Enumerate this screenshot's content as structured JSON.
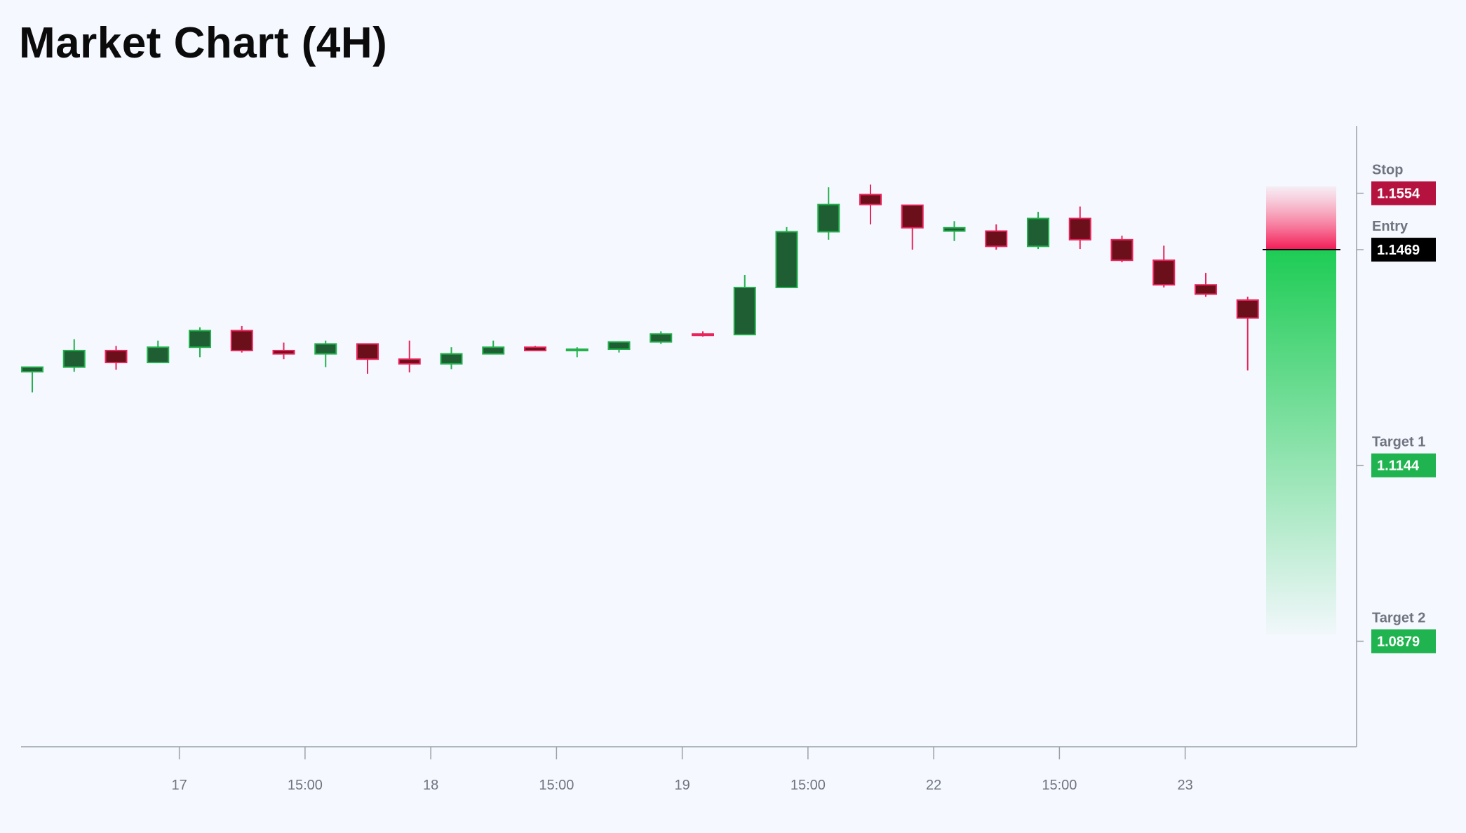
{
  "title": "Market Chart (4H)",
  "colors": {
    "background": "#f5f8fe",
    "bull_body": "#1f5e32",
    "bull_border": "#22b14c",
    "bear_body": "#6b0f1a",
    "bear_border": "#e8245a",
    "axis": "#9aa0aa",
    "stop": "#b5123f",
    "entry": "#000000",
    "target": "#1fb44f"
  },
  "chart_data": {
    "type": "candlestick",
    "x_tick_labels": [
      "17",
      "15:00",
      "18",
      "15:00",
      "19",
      "15:00",
      "22",
      "15:00",
      "23"
    ],
    "tick_after_candle": [
      4,
      7,
      10,
      13,
      16,
      19,
      22,
      25,
      28
    ],
    "ylim": [
      1.072,
      1.1655
    ],
    "candles": [
      {
        "o": 1.1285,
        "h": 1.1292,
        "l": 1.1254,
        "c": 1.1292
      },
      {
        "o": 1.1292,
        "h": 1.1334,
        "l": 1.1285,
        "c": 1.1317
      },
      {
        "o": 1.1317,
        "h": 1.1324,
        "l": 1.1288,
        "c": 1.1299
      },
      {
        "o": 1.1299,
        "h": 1.1332,
        "l": 1.1299,
        "c": 1.1322
      },
      {
        "o": 1.1322,
        "h": 1.1352,
        "l": 1.1307,
        "c": 1.1347
      },
      {
        "o": 1.1347,
        "h": 1.1354,
        "l": 1.1314,
        "c": 1.1317
      },
      {
        "o": 1.1317,
        "h": 1.1329,
        "l": 1.1304,
        "c": 1.1312
      },
      {
        "o": 1.1312,
        "h": 1.1332,
        "l": 1.1292,
        "c": 1.1327
      },
      {
        "o": 1.1327,
        "h": 1.1327,
        "l": 1.1282,
        "c": 1.1304
      },
      {
        "o": 1.1304,
        "h": 1.1332,
        "l": 1.1284,
        "c": 1.1297
      },
      {
        "o": 1.1297,
        "h": 1.1322,
        "l": 1.1289,
        "c": 1.1312
      },
      {
        "o": 1.1312,
        "h": 1.1332,
        "l": 1.1312,
        "c": 1.1322
      },
      {
        "o": 1.1322,
        "h": 1.1324,
        "l": 1.1317,
        "c": 1.1317
      },
      {
        "o": 1.1317,
        "h": 1.1322,
        "l": 1.1307,
        "c": 1.1319
      },
      {
        "o": 1.1319,
        "h": 1.1331,
        "l": 1.1314,
        "c": 1.133
      },
      {
        "o": 1.133,
        "h": 1.1346,
        "l": 1.1327,
        "c": 1.1342
      },
      {
        "o": 1.1342,
        "h": 1.1346,
        "l": 1.1338,
        "c": 1.1341
      },
      {
        "o": 1.1341,
        "h": 1.1431,
        "l": 1.1341,
        "c": 1.1412
      },
      {
        "o": 1.1412,
        "h": 1.1503,
        "l": 1.1412,
        "c": 1.1496
      },
      {
        "o": 1.1496,
        "h": 1.1563,
        "l": 1.1484,
        "c": 1.1537
      },
      {
        "o": 1.1552,
        "h": 1.1567,
        "l": 1.1507,
        "c": 1.1537
      },
      {
        "o": 1.1536,
        "h": 1.1536,
        "l": 1.1469,
        "c": 1.1502
      },
      {
        "o": 1.1497,
        "h": 1.1512,
        "l": 1.1482,
        "c": 1.1502
      },
      {
        "o": 1.1497,
        "h": 1.1507,
        "l": 1.1469,
        "c": 1.1474
      },
      {
        "o": 1.1474,
        "h": 1.1526,
        "l": 1.147,
        "c": 1.1516
      },
      {
        "o": 1.1516,
        "h": 1.1534,
        "l": 1.147,
        "c": 1.1484
      },
      {
        "o": 1.1484,
        "h": 1.149,
        "l": 1.145,
        "c": 1.1453
      },
      {
        "o": 1.1453,
        "h": 1.1475,
        "l": 1.1412,
        "c": 1.1416
      },
      {
        "o": 1.1416,
        "h": 1.1434,
        "l": 1.1398,
        "c": 1.1402
      },
      {
        "o": 1.1393,
        "h": 1.1398,
        "l": 1.1287,
        "c": 1.1366
      }
    ],
    "levels": [
      {
        "key": "stop",
        "label": "Stop",
        "value": 1.1554
      },
      {
        "key": "entry",
        "label": "Entry",
        "value": 1.1469
      },
      {
        "key": "target1",
        "label": "Target 1",
        "value": 1.1144
      },
      {
        "key": "target2",
        "label": "Target 2",
        "value": 1.0879
      }
    ],
    "grid": false
  }
}
